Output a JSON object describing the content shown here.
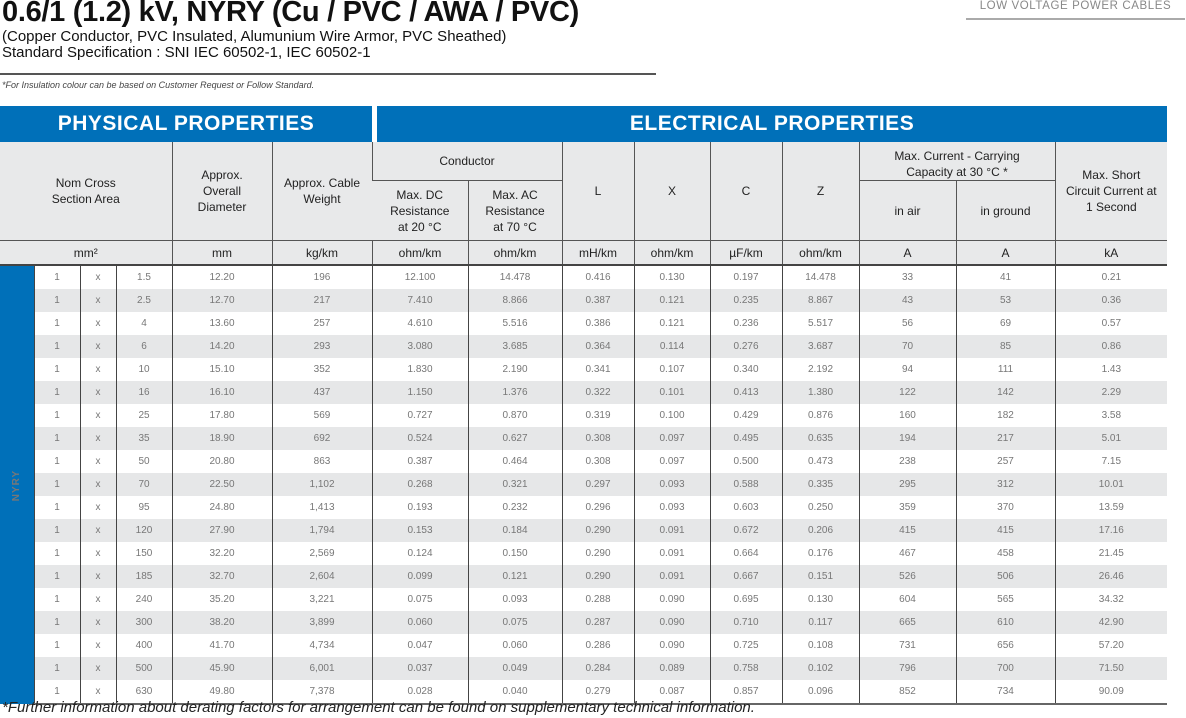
{
  "header": {
    "title": "0.6/1 (1.2) kV, NYRY (Cu / PVC / AWA / PVC)",
    "subtitle": "(Copper Conductor, PVC Insulated, Alumunium Wire Armor, PVC Sheathed)",
    "standard": "Standard Specification : SNI IEC 60502-1, IEC 60502-1",
    "note": "*For Insulation colour can be based on Customer Request or Follow Standard.",
    "category": "LOW VOLTAGE POWER CABLES"
  },
  "table": {
    "physical_title": "PHYSICAL PROPERTIES",
    "electrical_title": "ELECTRICAL PROPERTIES",
    "band_label": "NYRY",
    "headers": {
      "nom_cross": "Nom Cross Section Area",
      "diameter": "Approx. Overall Diameter",
      "weight": "Approx. Cable Weight",
      "conductor": "Conductor",
      "dc": "Max. DC Resistance at 20 °C",
      "ac": "Max. AC Resistance at 70 °C",
      "L": "L",
      "X": "X",
      "C": "C",
      "Z": "Z",
      "current": "Max. Current - Carrying Capacity at 30 °C *",
      "in_air": "in air",
      "in_ground": "in ground",
      "short_circuit": "Max. Short Circuit Current at 1 Second"
    },
    "units": [
      "mm²",
      "mm",
      "kg/km",
      "ohm/km",
      "ohm/km",
      "mH/km",
      "ohm/km",
      "µF/km",
      "ohm/km",
      "A",
      "A",
      "kA"
    ],
    "rows": [
      [
        "1",
        "x",
        "1.5",
        "12.20",
        "196",
        "12.100",
        "14.478",
        "0.416",
        "0.130",
        "0.197",
        "14.478",
        "33",
        "41",
        "0.21"
      ],
      [
        "1",
        "x",
        "2.5",
        "12.70",
        "217",
        "7.410",
        "8.866",
        "0.387",
        "0.121",
        "0.235",
        "8.867",
        "43",
        "53",
        "0.36"
      ],
      [
        "1",
        "x",
        "4",
        "13.60",
        "257",
        "4.610",
        "5.516",
        "0.386",
        "0.121",
        "0.236",
        "5.517",
        "56",
        "69",
        "0.57"
      ],
      [
        "1",
        "x",
        "6",
        "14.20",
        "293",
        "3.080",
        "3.685",
        "0.364",
        "0.114",
        "0.276",
        "3.687",
        "70",
        "85",
        "0.86"
      ],
      [
        "1",
        "x",
        "10",
        "15.10",
        "352",
        "1.830",
        "2.190",
        "0.341",
        "0.107",
        "0.340",
        "2.192",
        "94",
        "111",
        "1.43"
      ],
      [
        "1",
        "x",
        "16",
        "16.10",
        "437",
        "1.150",
        "1.376",
        "0.322",
        "0.101",
        "0.413",
        "1.380",
        "122",
        "142",
        "2.29"
      ],
      [
        "1",
        "x",
        "25",
        "17.80",
        "569",
        "0.727",
        "0.870",
        "0.319",
        "0.100",
        "0.429",
        "0.876",
        "160",
        "182",
        "3.58"
      ],
      [
        "1",
        "x",
        "35",
        "18.90",
        "692",
        "0.524",
        "0.627",
        "0.308",
        "0.097",
        "0.495",
        "0.635",
        "194",
        "217",
        "5.01"
      ],
      [
        "1",
        "x",
        "50",
        "20.80",
        "863",
        "0.387",
        "0.464",
        "0.308",
        "0.097",
        "0.500",
        "0.473",
        "238",
        "257",
        "7.15"
      ],
      [
        "1",
        "x",
        "70",
        "22.50",
        "1,102",
        "0.268",
        "0.321",
        "0.297",
        "0.093",
        "0.588",
        "0.335",
        "295",
        "312",
        "10.01"
      ],
      [
        "1",
        "x",
        "95",
        "24.80",
        "1,413",
        "0.193",
        "0.232",
        "0.296",
        "0.093",
        "0.603",
        "0.250",
        "359",
        "370",
        "13.59"
      ],
      [
        "1",
        "x",
        "120",
        "27.90",
        "1,794",
        "0.153",
        "0.184",
        "0.290",
        "0.091",
        "0.672",
        "0.206",
        "415",
        "415",
        "17.16"
      ],
      [
        "1",
        "x",
        "150",
        "32.20",
        "2,569",
        "0.124",
        "0.150",
        "0.290",
        "0.091",
        "0.664",
        "0.176",
        "467",
        "458",
        "21.45"
      ],
      [
        "1",
        "x",
        "185",
        "32.70",
        "2,604",
        "0.099",
        "0.121",
        "0.290",
        "0.091",
        "0.667",
        "0.151",
        "526",
        "506",
        "26.46"
      ],
      [
        "1",
        "x",
        "240",
        "35.20",
        "3,221",
        "0.075",
        "0.093",
        "0.288",
        "0.090",
        "0.695",
        "0.130",
        "604",
        "565",
        "34.32"
      ],
      [
        "1",
        "x",
        "300",
        "38.20",
        "3,899",
        "0.060",
        "0.075",
        "0.287",
        "0.090",
        "0.710",
        "0.117",
        "665",
        "610",
        "42.90"
      ],
      [
        "1",
        "x",
        "400",
        "41.70",
        "4,734",
        "0.047",
        "0.060",
        "0.286",
        "0.090",
        "0.725",
        "0.108",
        "731",
        "656",
        "57.20"
      ],
      [
        "1",
        "x",
        "500",
        "45.90",
        "6,001",
        "0.037",
        "0.049",
        "0.284",
        "0.089",
        "0.758",
        "0.102",
        "796",
        "700",
        "71.50"
      ],
      [
        "1",
        "x",
        "630",
        "49.80",
        "7,378",
        "0.028",
        "0.040",
        "0.279",
        "0.087",
        "0.857",
        "0.096",
        "852",
        "734",
        "90.09"
      ]
    ]
  },
  "footer": "*Further information about derating factors for arrangement can be found on supplementary technical information."
}
